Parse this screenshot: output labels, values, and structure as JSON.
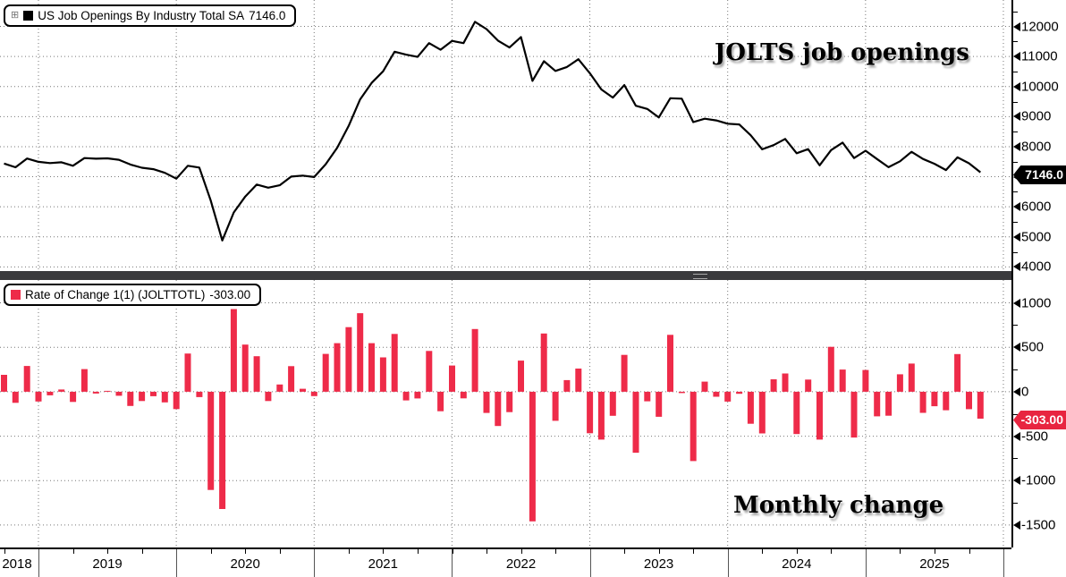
{
  "colors": {
    "series_line": "#000000",
    "bar_red": "#ee2b49",
    "top_badge_bg": "#000000",
    "bottom_badge_bg": "#e82540",
    "grid": "#777777",
    "divider": "#3a3a3d"
  },
  "top_panel": {
    "legend": {
      "expand_icon": "⊞",
      "swatch_color": "#000000",
      "label": "US Job Openings By Industry Total SA",
      "value": "7146.0"
    },
    "annotation": "JOLTS job openings",
    "y_ticks": [
      12000,
      11000,
      10000,
      9000,
      8000,
      7000,
      6000,
      5000,
      4000
    ],
    "last_value_badge": "7146.0"
  },
  "bottom_panel": {
    "legend": {
      "swatch_color": "#ee2b49",
      "label": "Rate of Change 1(1) (JOLTTOTL)",
      "value": "-303.00"
    },
    "annotation": "Monthly change",
    "y_ticks": [
      1000,
      500,
      0,
      -500,
      -1000,
      -1500
    ],
    "last_value_badge": "-303.00"
  },
  "x_axis": {
    "years": [
      "2018",
      "2019",
      "2020",
      "2021",
      "2022",
      "2023",
      "2024",
      "2025"
    ]
  },
  "chart_data": [
    {
      "type": "line",
      "title": "US Job Openings By Industry Total SA",
      "series_name": "JOLTS job openings (thousands, SA)",
      "ylim": [
        3900,
        12640
      ],
      "grid": true,
      "legend_position": "top-left",
      "last_value": 7146.0,
      "x": [
        "2018-10",
        "2018-11",
        "2018-12",
        "2019-01",
        "2019-02",
        "2019-03",
        "2019-04",
        "2019-05",
        "2019-06",
        "2019-07",
        "2019-08",
        "2019-09",
        "2019-10",
        "2019-11",
        "2019-12",
        "2020-01",
        "2020-02",
        "2020-03",
        "2020-04",
        "2020-05",
        "2020-06",
        "2020-07",
        "2020-08",
        "2020-09",
        "2020-10",
        "2020-11",
        "2020-12",
        "2021-01",
        "2021-02",
        "2021-03",
        "2021-04",
        "2021-05",
        "2021-06",
        "2021-07",
        "2021-08",
        "2021-09",
        "2021-10",
        "2021-11",
        "2021-12",
        "2022-01",
        "2022-02",
        "2022-03",
        "2022-04",
        "2022-05",
        "2022-06",
        "2022-07",
        "2022-08",
        "2022-09",
        "2022-10",
        "2022-11",
        "2022-12",
        "2023-01",
        "2023-02",
        "2023-03",
        "2023-04",
        "2023-05",
        "2023-06",
        "2023-07",
        "2023-08",
        "2023-09",
        "2023-10",
        "2023-11",
        "2023-12",
        "2024-01",
        "2024-02",
        "2024-03",
        "2024-04",
        "2024-05",
        "2024-06",
        "2024-07",
        "2024-08",
        "2024-09",
        "2024-10",
        "2024-11",
        "2024-12",
        "2025-01",
        "2025-02",
        "2025-03",
        "2025-04",
        "2025-05",
        "2025-06",
        "2025-07",
        "2025-08",
        "2025-09",
        "2025-10",
        "2025-11"
      ],
      "values": [
        7440,
        7315,
        7605,
        7495,
        7455,
        7480,
        7365,
        7620,
        7600,
        7610,
        7565,
        7405,
        7300,
        7250,
        7130,
        6935,
        7365,
        7305,
        6200,
        4880,
        5810,
        6340,
        6740,
        6635,
        6717,
        7005,
        7038,
        6989,
        7415,
        7962,
        8689,
        9573,
        10120,
        10507,
        11157,
        11059,
        10984,
        11443,
        11224,
        11519,
        11445,
        12151,
        11912,
        11526,
        11297,
        11647,
        10189,
        10844,
        10517,
        10648,
        10909,
        10442,
        9903,
        9632,
        10047,
        9361,
        9253,
        8971,
        9611,
        9596,
        8816,
        8930,
        8874,
        8763,
        8740,
        8380,
        7911,
        8051,
        8256,
        7780,
        7917,
        7379,
        7884,
        8134,
        7619,
        7864,
        7587,
        7317,
        7513,
        7830,
        7592,
        7429,
        7221,
        7645,
        7449,
        7146
      ]
    },
    {
      "type": "bar",
      "title": "Rate of Change 1(1) (JOLTTOTL)",
      "series_name": "Monthly change (thousands)",
      "ylim": [
        -1750,
        1250
      ],
      "grid": true,
      "legend_position": "top-left",
      "last_value": -303.0,
      "x": [
        "2018-10",
        "2018-11",
        "2018-12",
        "2019-01",
        "2019-02",
        "2019-03",
        "2019-04",
        "2019-05",
        "2019-06",
        "2019-07",
        "2019-08",
        "2019-09",
        "2019-10",
        "2019-11",
        "2019-12",
        "2020-01",
        "2020-02",
        "2020-03",
        "2020-04",
        "2020-05",
        "2020-06",
        "2020-07",
        "2020-08",
        "2020-09",
        "2020-10",
        "2020-11",
        "2020-12",
        "2021-01",
        "2021-02",
        "2021-03",
        "2021-04",
        "2021-05",
        "2021-06",
        "2021-07",
        "2021-08",
        "2021-09",
        "2021-10",
        "2021-11",
        "2021-12",
        "2022-01",
        "2022-02",
        "2022-03",
        "2022-04",
        "2022-05",
        "2022-06",
        "2022-07",
        "2022-08",
        "2022-09",
        "2022-10",
        "2022-11",
        "2022-12",
        "2023-01",
        "2023-02",
        "2023-03",
        "2023-04",
        "2023-05",
        "2023-06",
        "2023-07",
        "2023-08",
        "2023-09",
        "2023-10",
        "2023-11",
        "2023-12",
        "2024-01",
        "2024-02",
        "2024-03",
        "2024-04",
        "2024-05",
        "2024-06",
        "2024-07",
        "2024-08",
        "2024-09",
        "2024-10",
        "2024-11",
        "2024-12",
        "2025-01",
        "2025-02",
        "2025-03",
        "2025-04",
        "2025-05",
        "2025-06",
        "2025-07",
        "2025-08",
        "2025-09",
        "2025-10",
        "2025-11"
      ],
      "values": [
        190,
        -125,
        290,
        -110,
        -40,
        25,
        -115,
        255,
        -20,
        10,
        -45,
        -160,
        -105,
        -50,
        -120,
        -195,
        430,
        -60,
        -1105,
        -1320,
        930,
        530,
        400,
        -105,
        82,
        288,
        33,
        -49,
        426,
        547,
        727,
        884,
        547,
        387,
        650,
        -98,
        -75,
        459,
        -219,
        295,
        -74,
        706,
        -239,
        -386,
        -229,
        350,
        -1458,
        655,
        -327,
        131,
        261,
        -467,
        -539,
        -271,
        415,
        -686,
        -108,
        -282,
        640,
        -15,
        -780,
        114,
        -56,
        -111,
        -23,
        -360,
        -469,
        140,
        205,
        -476,
        137,
        -538,
        505,
        250,
        -515,
        245,
        -277,
        -270,
        196,
        317,
        -238,
        -163,
        -208,
        424,
        -196,
        -303
      ]
    }
  ]
}
